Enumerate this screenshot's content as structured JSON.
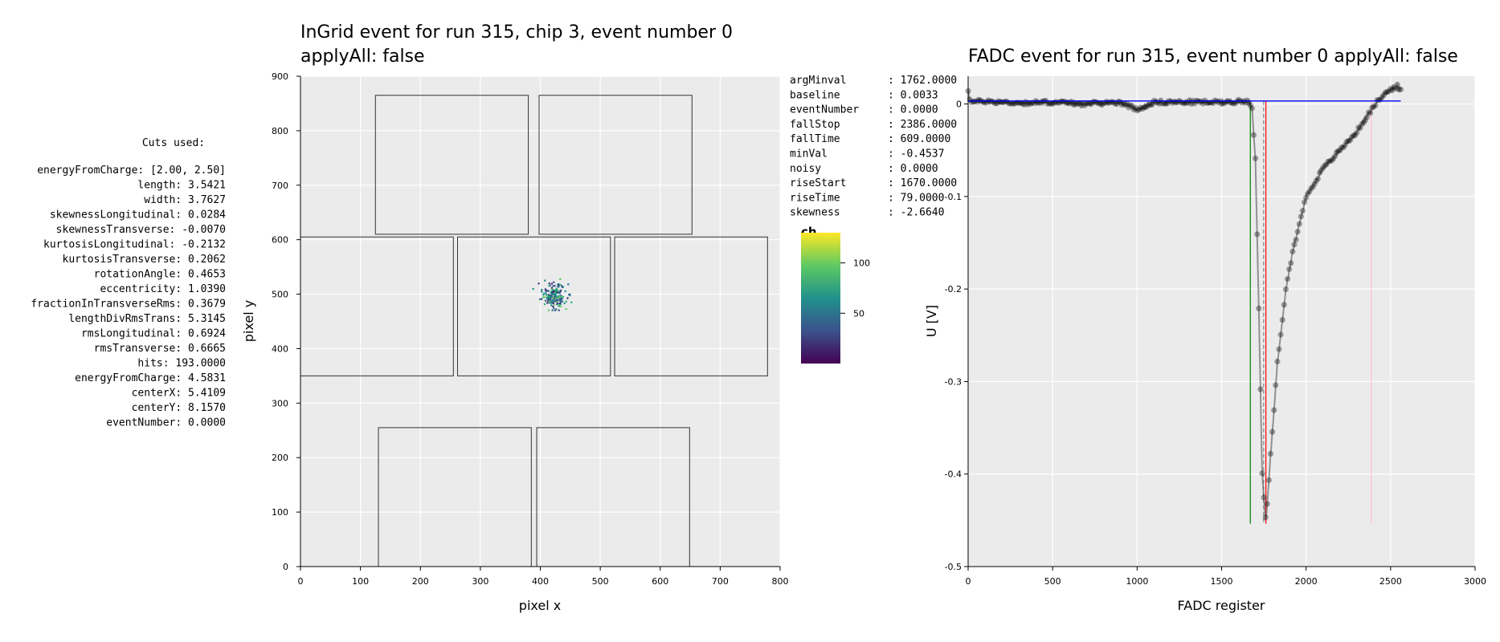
{
  "cuts": {
    "header": "Cuts used:",
    "lines": [
      "energyFromCharge: [2.00, 2.50]",
      "length: 3.5421",
      "width: 3.7627",
      "skewnessLongitudinal: 0.0284",
      "skewnessTransverse: -0.0070",
      "kurtosisLongitudinal: -0.2132",
      "kurtosisTransverse: 0.2062",
      "rotationAngle: 0.4653",
      "eccentricity: 1.0390",
      "fractionInTransverseRms: 0.3679",
      "lengthDivRmsTrans: 5.3145",
      "rmsLongitudinal: 0.6924",
      "rmsTransverse: 0.6665",
      "hits: 193.0000",
      "energyFromCharge: 4.5831",
      "centerX: 5.4109",
      "centerY: 8.1570",
      "eventNumber: 0.0000"
    ]
  },
  "fadc_params": [
    {
      "key": "argMinval",
      "value": ": 1762.0000"
    },
    {
      "key": "baseline",
      "value": ": 0.0033"
    },
    {
      "key": "eventNumber",
      "value": ": 0.0000"
    },
    {
      "key": "fallStop",
      "value": ": 2386.0000"
    },
    {
      "key": "fallTime",
      "value": ": 609.0000"
    },
    {
      "key": "minVal",
      "value": ": -0.4537"
    },
    {
      "key": "noisy",
      "value": ": 0.0000"
    },
    {
      "key": "riseStart",
      "value": ": 1670.0000"
    },
    {
      "key": "riseTime",
      "value": ": 79.0000"
    },
    {
      "key": "skewness",
      "value": ": -2.6640"
    }
  ],
  "colors": {
    "panel_bg": "#ebebeb",
    "grid": "#ffffff",
    "baseline_line": "#0000ff",
    "rise_line": "#008000",
    "argmin_line": "#ff0000",
    "fallstop_line": "#ffc0cb",
    "point": "#000000"
  },
  "chart_data": [
    {
      "type": "scatter",
      "title_line1": "InGrid event for run 315, chip 3, event number 0",
      "title_line2": "applyAll: false",
      "xlabel": "pixel x",
      "ylabel": "pixel y",
      "xlim": [
        0,
        800
      ],
      "ylim": [
        0,
        900
      ],
      "xticks": [
        0,
        100,
        200,
        300,
        400,
        500,
        600,
        700,
        800
      ],
      "yticks": [
        0,
        100,
        200,
        300,
        400,
        500,
        600,
        700,
        800,
        900
      ],
      "chip_outlines": [
        [
          125,
          610,
          380,
          865
        ],
        [
          398,
          610,
          653,
          865
        ],
        [
          0,
          350,
          255,
          605
        ],
        [
          262,
          350,
          517,
          605
        ],
        [
          524,
          350,
          779,
          605
        ],
        [
          130,
          0,
          385,
          255
        ],
        [
          394,
          0,
          649,
          255
        ]
      ],
      "colorbar": {
        "label": "ch",
        "ticks": [
          50,
          100
        ],
        "range": [
          0,
          130
        ]
      },
      "cluster": {
        "center_x": 423,
        "center_y": 497,
        "count": 193,
        "spread_x": 10,
        "spread_y": 11
      }
    },
    {
      "type": "line",
      "title": "FADC event for run 315, event number 0 applyAll: false",
      "xlabel": "FADC register",
      "ylabel": "U [V]",
      "xlim": [
        0,
        3000
      ],
      "ylim": [
        -0.5,
        0.03
      ],
      "xticks": [
        0,
        500,
        1000,
        1500,
        2000,
        2500,
        3000
      ],
      "yticks": [
        0,
        -0.1,
        -0.2,
        -0.3,
        -0.4,
        -0.5
      ],
      "ytick_labels": [
        "0",
        "-0.1",
        "-0.2",
        "-0.3",
        "-0.4",
        "-0.5"
      ],
      "baseline": 0.0033,
      "baseline_range": [
        0,
        2560
      ],
      "vlines": [
        {
          "x": 1670,
          "name": "riseStart",
          "style": "solid",
          "color": "#008000"
        },
        {
          "x": 1749,
          "name": "riseEnd",
          "style": "dashed",
          "color": "#808080"
        },
        {
          "x": 1762,
          "name": "argMinval",
          "style": "solid",
          "color": "#ff0000"
        },
        {
          "x": 2386,
          "name": "fallStop",
          "style": "solid",
          "color": "#ffc0cb"
        }
      ],
      "vline_bottom": -0.4537,
      "waveform_keypoints": [
        [
          0,
          0.015
        ],
        [
          15,
          0.002
        ],
        [
          100,
          0.003
        ],
        [
          300,
          0.001
        ],
        [
          500,
          0.002
        ],
        [
          700,
          0.0
        ],
        [
          900,
          0.002
        ],
        [
          1000,
          -0.006
        ],
        [
          1100,
          0.002
        ],
        [
          1300,
          0.002
        ],
        [
          1500,
          0.002
        ],
        [
          1630,
          0.003
        ],
        [
          1660,
          0.003
        ],
        [
          1680,
          -0.003
        ],
        [
          1700,
          -0.06
        ],
        [
          1720,
          -0.22
        ],
        [
          1740,
          -0.4
        ],
        [
          1762,
          -0.4537
        ],
        [
          1790,
          -0.38
        ],
        [
          1830,
          -0.28
        ],
        [
          1880,
          -0.2
        ],
        [
          1920,
          -0.16
        ],
        [
          1960,
          -0.13
        ],
        [
          2000,
          -0.1
        ],
        [
          2100,
          -0.07
        ],
        [
          2200,
          -0.05
        ],
        [
          2300,
          -0.03
        ],
        [
          2380,
          -0.008
        ],
        [
          2430,
          0.005
        ],
        [
          2480,
          0.013
        ],
        [
          2520,
          0.018
        ],
        [
          2540,
          0.019
        ],
        [
          2560,
          0.015
        ]
      ]
    }
  ]
}
